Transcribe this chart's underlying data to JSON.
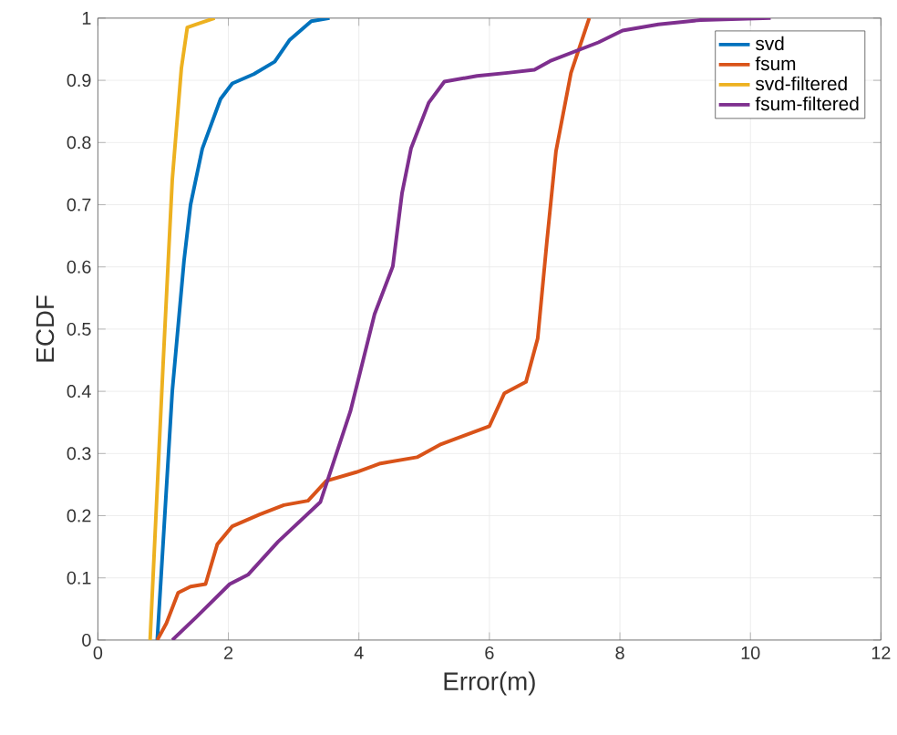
{
  "chart_data": {
    "type": "line",
    "xlabel": "Error(m)",
    "ylabel": "ECDF",
    "xlim": [
      0,
      12
    ],
    "ylim": [
      0,
      1
    ],
    "xticks": [
      0,
      2,
      4,
      6,
      8,
      10,
      12
    ],
    "yticks": [
      0,
      0.1,
      0.2,
      0.3,
      0.4,
      0.5,
      0.6,
      0.7,
      0.8,
      0.9,
      1
    ],
    "grid": true,
    "legend": "top right",
    "marker": "none",
    "line_style": "solid",
    "series": [
      {
        "name": "svd",
        "color": "#0072bd",
        "x": [
          0.91,
          1.14,
          1.32,
          1.42,
          1.6,
          1.88,
          2.06,
          2.39,
          2.71,
          2.94,
          3.27,
          3.55
        ],
        "values": [
          0,
          0.4,
          0.61,
          0.7,
          0.79,
          0.87,
          0.895,
          0.91,
          0.93,
          0.965,
          0.995,
          1.0
        ]
      },
      {
        "name": "fsum",
        "color": "#d95319",
        "x": [
          0.91,
          1.05,
          1.23,
          1.42,
          1.65,
          1.83,
          2.06,
          2.48,
          2.85,
          3.22,
          3.5,
          3.96,
          4.33,
          4.89,
          5.26,
          6.0,
          6.23,
          6.56,
          6.74,
          6.88,
          7.02,
          7.25,
          7.53
        ],
        "values": [
          0,
          0.027,
          0.076,
          0.086,
          0.09,
          0.154,
          0.183,
          0.202,
          0.217,
          0.224,
          0.256,
          0.27,
          0.284,
          0.294,
          0.315,
          0.344,
          0.397,
          0.415,
          0.485,
          0.64,
          0.786,
          0.912,
          1.0
        ]
      },
      {
        "name": "svd-filtered",
        "color": "#edb120",
        "x": [
          0.8,
          1.0,
          1.14,
          1.28,
          1.37,
          1.51,
          1.79
        ],
        "values": [
          0,
          0.445,
          0.74,
          0.92,
          0.985,
          0.99,
          1.0
        ]
      },
      {
        "name": "fsum-filtered",
        "color": "#7e2f8e",
        "x": [
          1.14,
          1.51,
          2.02,
          2.3,
          2.76,
          3.41,
          3.87,
          4.24,
          4.52,
          4.66,
          4.8,
          5.07,
          5.31,
          5.81,
          6.28,
          6.69,
          6.93,
          7.3,
          7.67,
          8.04,
          8.59,
          9.24,
          10.31
        ],
        "values": [
          0,
          0.037,
          0.09,
          0.105,
          0.158,
          0.222,
          0.368,
          0.524,
          0.601,
          0.718,
          0.791,
          0.864,
          0.898,
          0.907,
          0.912,
          0.917,
          0.931,
          0.946,
          0.961,
          0.98,
          0.99,
          0.997,
          1.0
        ]
      }
    ]
  }
}
